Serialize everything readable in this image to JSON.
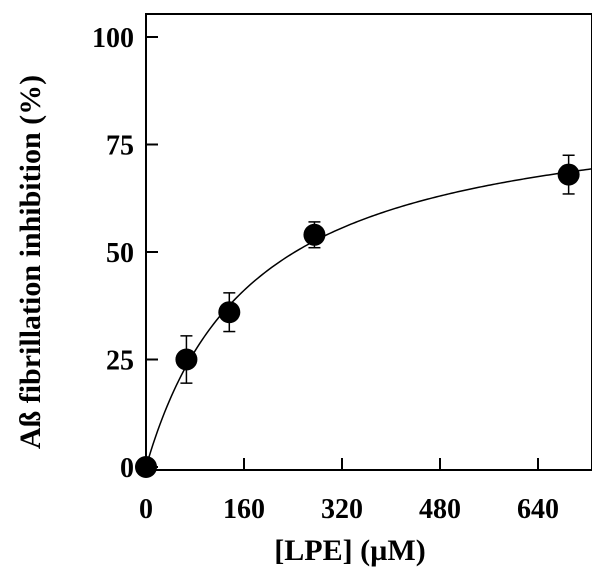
{
  "chart_data": {
    "type": "scatter",
    "title": "",
    "xlabel": "[LPE] (µM)",
    "ylabel": "Aß fibrillation inhibition (%)",
    "xlim": [
      0,
      760
    ],
    "ylim": [
      0,
      105
    ],
    "x_ticks": [
      0,
      160,
      320,
      480,
      640
    ],
    "y_ticks": [
      0,
      25,
      50,
      75,
      100
    ],
    "grid": false,
    "legend": "none",
    "marker_color": "#000000",
    "series": [
      {
        "x": [
          0,
          66,
          136,
          275,
          690
        ],
        "y": [
          0,
          25,
          36,
          54,
          68
        ],
        "error": [
          0,
          5.5,
          4.5,
          3.0,
          4.5
        ]
      }
    ],
    "fit_curve": {
      "type": "hyperbolic",
      "ymax": 86,
      "k": 175,
      "x_range": [
        0,
        760
      ]
    }
  }
}
